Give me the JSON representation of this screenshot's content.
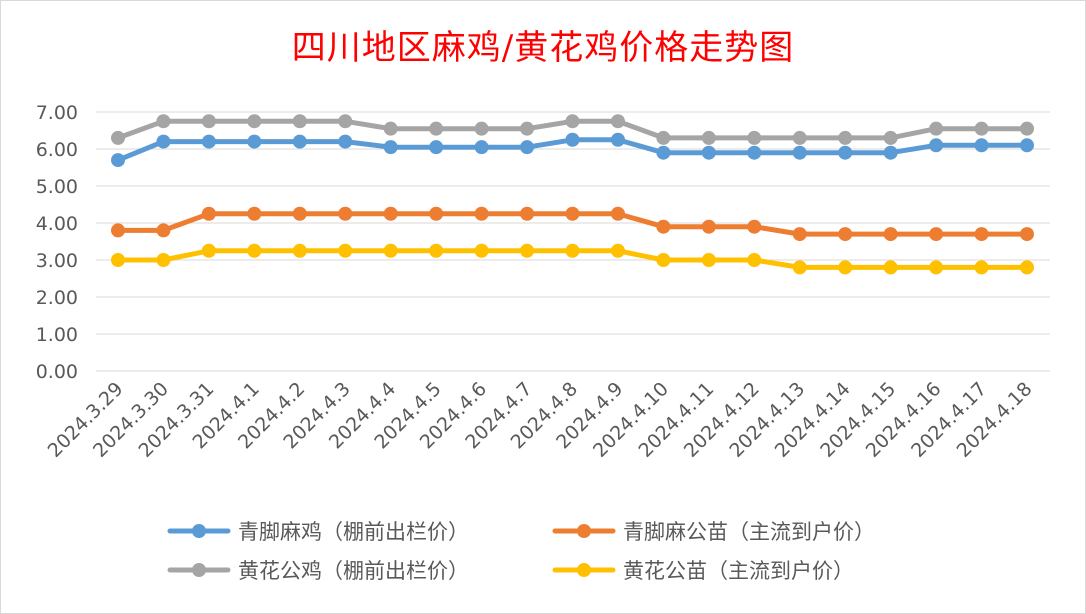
{
  "chart_data": {
    "type": "line",
    "title": "四川地区麻鸡/黄花鸡价格走势图",
    "xlabel": "",
    "ylabel": "",
    "ylim": [
      0,
      7
    ],
    "yticks": [
      "0.00",
      "1.00",
      "2.00",
      "3.00",
      "4.00",
      "5.00",
      "6.00",
      "7.00"
    ],
    "grid": true,
    "legend_position": "bottom",
    "categories": [
      "2024.3.29",
      "2024.3.30",
      "2024.3.31",
      "2024.4.1",
      "2024.4.2",
      "2024.4.3",
      "2024.4.4",
      "2024.4.5",
      "2024.4.6",
      "2024.4.7",
      "2024.4.8",
      "2024.4.9",
      "2024.4.10",
      "2024.4.11",
      "2024.4.12",
      "2024.4.13",
      "2024.4.14",
      "2024.4.15",
      "2024.4.16",
      "2024.4.17",
      "2024.4.18"
    ],
    "series": [
      {
        "name": "青脚麻鸡（棚前出栏价）",
        "color": "#5b9bd5",
        "values": [
          5.7,
          6.2,
          6.2,
          6.2,
          6.2,
          6.2,
          6.05,
          6.05,
          6.05,
          6.05,
          6.25,
          6.25,
          5.9,
          5.9,
          5.9,
          5.9,
          5.9,
          5.9,
          6.1,
          6.1,
          6.1
        ]
      },
      {
        "name": "青脚麻公苗（主流到户价）",
        "color": "#ed7d31",
        "values": [
          3.8,
          3.8,
          4.25,
          4.25,
          4.25,
          4.25,
          4.25,
          4.25,
          4.25,
          4.25,
          4.25,
          4.25,
          3.9,
          3.9,
          3.9,
          3.7,
          3.7,
          3.7,
          3.7,
          3.7,
          3.7
        ]
      },
      {
        "name": "黄花公鸡（棚前出栏价）",
        "color": "#a5a5a5",
        "values": [
          6.3,
          6.75,
          6.75,
          6.75,
          6.75,
          6.75,
          6.55,
          6.55,
          6.55,
          6.55,
          6.75,
          6.75,
          6.3,
          6.3,
          6.3,
          6.3,
          6.3,
          6.3,
          6.55,
          6.55,
          6.55
        ]
      },
      {
        "name": "黄花公苗（主流到户价）",
        "color": "#ffc000",
        "values": [
          3.0,
          3.0,
          3.25,
          3.25,
          3.25,
          3.25,
          3.25,
          3.25,
          3.25,
          3.25,
          3.25,
          3.25,
          3.0,
          3.0,
          3.0,
          2.8,
          2.8,
          2.8,
          2.8,
          2.8,
          2.8
        ]
      }
    ]
  }
}
